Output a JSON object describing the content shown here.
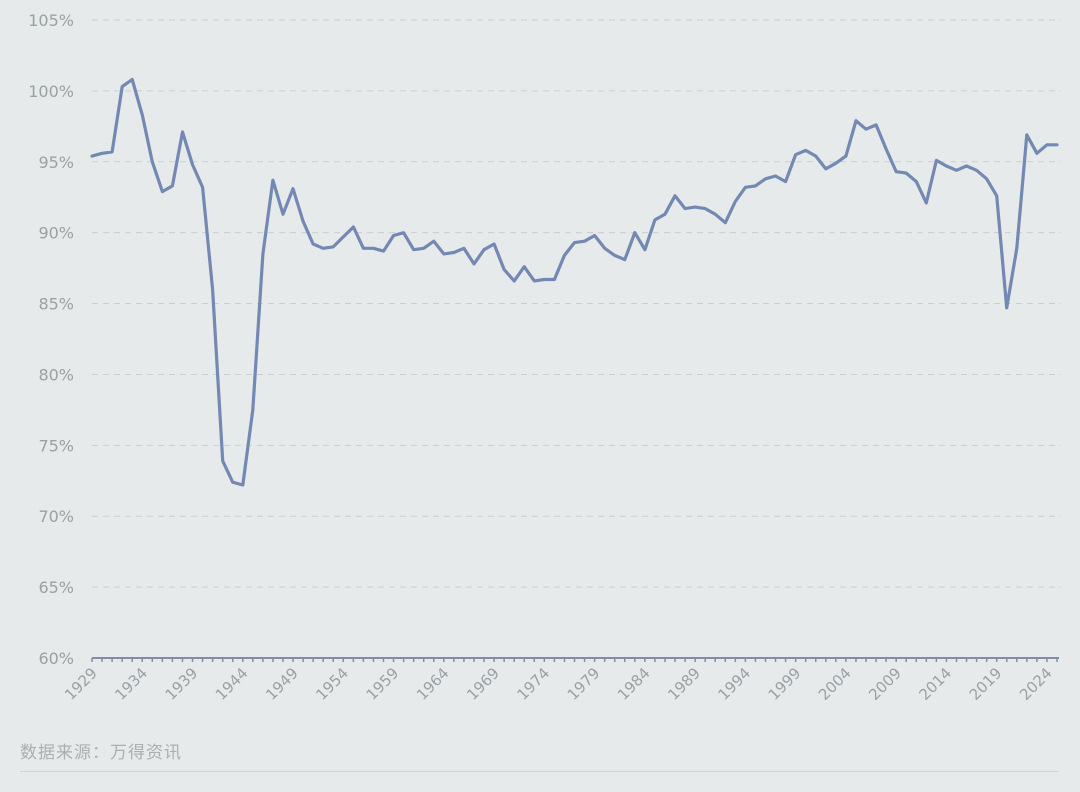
{
  "colors": {
    "line": "#7389b3"
  },
  "source_note": "数据来源：万得资讯",
  "chart_data": {
    "type": "line",
    "title": "",
    "xlabel": "",
    "ylabel": "",
    "ylim": [
      60,
      105
    ],
    "yticks": [
      60,
      65,
      70,
      75,
      80,
      85,
      90,
      95,
      100,
      105
    ],
    "ytick_labels": [
      "60%",
      "65%",
      "70%",
      "75%",
      "80%",
      "85%",
      "90%",
      "95%",
      "100%",
      "105%"
    ],
    "xlim": [
      1929,
      2025
    ],
    "xticks": [
      1929,
      1934,
      1939,
      1944,
      1949,
      1954,
      1959,
      1964,
      1969,
      1974,
      1979,
      1984,
      1989,
      1994,
      1999,
      2004,
      2009,
      2014,
      2019,
      2024
    ],
    "xtick_labels": [
      "1929",
      "1934",
      "1939",
      "1944",
      "1949",
      "1954",
      "1959",
      "1964",
      "1969",
      "1974",
      "1979",
      "1984",
      "1989",
      "1994",
      "1999",
      "2004",
      "2009",
      "2014",
      "2019",
      "2024"
    ],
    "grid": true,
    "legend": "none",
    "series": [
      {
        "x": [
          1929,
          1930,
          1931,
          1932,
          1933,
          1934,
          1935,
          1936,
          1937,
          1938,
          1939,
          1940,
          1941,
          1942,
          1943,
          1944,
          1945,
          1946,
          1947,
          1948,
          1949,
          1950,
          1951,
          1952,
          1953,
          1954,
          1955,
          1956,
          1957,
          1958,
          1959,
          1960,
          1961,
          1962,
          1963,
          1964,
          1965,
          1966,
          1967,
          1968,
          1969,
          1970,
          1971,
          1972,
          1973,
          1974,
          1975,
          1976,
          1977,
          1978,
          1979,
          1980,
          1981,
          1982,
          1983,
          1984,
          1985,
          1986,
          1987,
          1988,
          1989,
          1990,
          1991,
          1992,
          1993,
          1994,
          1995,
          1996,
          1997,
          1998,
          1999,
          2000,
          2001,
          2002,
          2003,
          2004,
          2005,
          2006,
          2007,
          2008,
          2009,
          2010,
          2011,
          2012,
          2013,
          2014,
          2015,
          2016,
          2017,
          2018,
          2019,
          2020,
          2021,
          2022,
          2023,
          2024,
          2025
        ],
        "values": [
          95.4,
          95.6,
          95.7,
          100.3,
          100.8,
          98.3,
          95,
          92.9,
          93.3,
          97.1,
          94.8,
          93.2,
          86,
          73.9,
          72.4,
          72.2,
          77.5,
          88.5,
          93.7,
          91.3,
          93.1,
          90.8,
          89.2,
          88.9,
          89,
          89.7,
          90.4,
          88.9,
          88.9,
          88.7,
          89.8,
          90,
          88.8,
          88.9,
          89.4,
          88.5,
          88.6,
          88.9,
          87.8,
          88.8,
          89.2,
          87.4,
          86.6,
          87.6,
          86.6,
          86.7,
          86.7,
          88.4,
          89.3,
          89.4,
          89.8,
          88.9,
          88.4,
          88.1,
          90,
          88.8,
          90.9,
          91.3,
          92.6,
          91.7,
          91.8,
          91.7,
          91.3,
          90.7,
          92.2,
          93.2,
          93.3,
          93.8,
          94,
          93.6,
          95.5,
          95.8,
          95.4,
          94.5,
          94.9,
          95.4,
          97.9,
          97.3,
          97.6,
          95.9,
          94.3,
          94.2,
          93.6,
          92.1,
          95.1,
          94.7,
          94.4,
          94.7,
          94.4,
          93.8,
          92.6,
          84.7,
          88.9,
          96.9,
          95.6,
          96.2,
          96.2
        ]
      }
    ]
  }
}
